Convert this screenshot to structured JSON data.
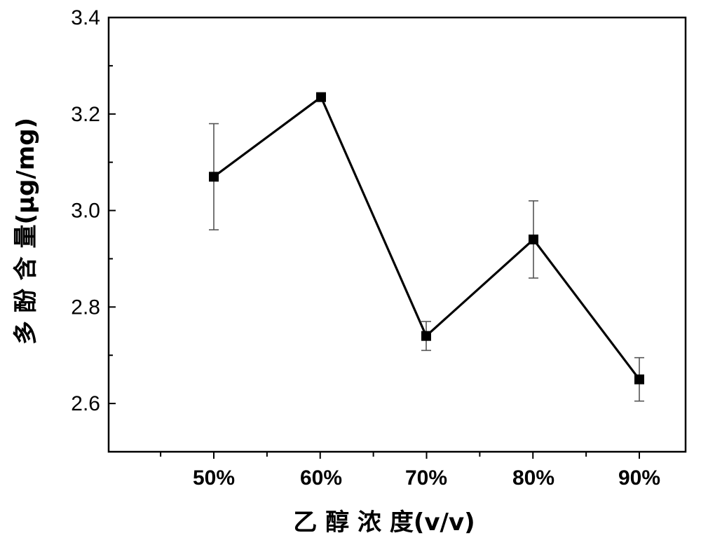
{
  "chart_data": {
    "type": "line",
    "title": "",
    "xlabel": "乙 醇 浓 度(v/v)",
    "ylabel": "多 酚 含 量(μg/mg)",
    "categories": [
      "50%",
      "60%",
      "70%",
      "80%",
      "90%"
    ],
    "series": [
      {
        "name": "多酚含量",
        "values": [
          3.07,
          3.235,
          2.74,
          2.94,
          2.65
        ],
        "errors": [
          0.11,
          0.0,
          0.03,
          0.08,
          0.045
        ]
      }
    ],
    "ylim": [
      2.5,
      3.4
    ],
    "yticks": [
      "2.6",
      "2.8",
      "3.0",
      "3.2",
      "3.4"
    ],
    "ytick_values": [
      2.6,
      2.8,
      3.0,
      3.2,
      3.4
    ],
    "grid": false,
    "marker": "square",
    "color": "#000000"
  }
}
